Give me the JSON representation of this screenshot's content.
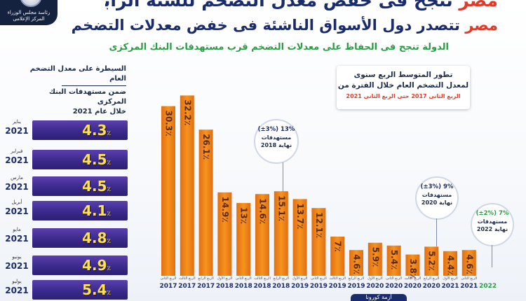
{
  "header": {
    "headline_accent": "مصر",
    "headline_rest": " تنجح فى خفض معدل التضخم للسنة الرابعة على التوالى",
    "sub_accent": "مصر",
    "sub_rest": " تتصدر دول الأسواق الناشئة فى خفض معدلات التضخم",
    "tagline": "الدولة تنجح فى الحفاظ على معدلات التضخم قرب مستهدفات البنك المركزى"
  },
  "logo": {
    "line1": "رئاسة مجلس الوزراء",
    "line2": "المركز الإعلامى"
  },
  "left_panel": {
    "caption_line1": "السيطرة على معدل التضخم العام",
    "caption_line2": "ضمن مستهدفات البنك المركزى",
    "caption_line3": "خلال عام 2021",
    "colors": {
      "bar": "#3b2a8c",
      "value": "#ffe24a"
    },
    "rows": [
      {
        "month": "يناير",
        "year": "2021",
        "value": "4.3",
        "unit": "٪"
      },
      {
        "month": "فبراير",
        "year": "2021",
        "value": "4.5",
        "unit": "٪"
      },
      {
        "month": "مارس",
        "year": "2021",
        "value": "4.5",
        "unit": "٪"
      },
      {
        "month": "أبريل",
        "year": "2021",
        "value": "4.1",
        "unit": "٪"
      },
      {
        "month": "مايو",
        "year": "2021",
        "value": "4.8",
        "unit": "٪"
      },
      {
        "month": "يونيو",
        "year": "2021",
        "value": "4.9",
        "unit": "٪"
      },
      {
        "month": "يوليو",
        "year": "2021",
        "value": "5.4",
        "unit": "٪"
      }
    ]
  },
  "chart_title": {
    "line1": "تطور المتوسط الربع سنوى",
    "line2": "لمعدل التضخم العام خلال الفترة من",
    "line3": "الربع الثانى 2017 حتى الربع الثانى 2021"
  },
  "targets": [
    {
      "pct": "13% (±3%)",
      "label1": "مستهدفات",
      "label2": "نهاية 2018"
    },
    {
      "pct": "9% (±3%)",
      "label1": "مستهدفات",
      "label2": "نهاية 2020"
    },
    {
      "pct": "7% (±2%)",
      "label1": "مستهدفات",
      "label2": "نهاية 2022"
    }
  ],
  "footer": {
    "badge": "أزمة كورونا"
  },
  "chart_data": {
    "type": "bar",
    "title": "تطور المتوسط الربع سنوى لمعدل التضخم العام خلال الفترة من الربع الثانى 2017 حتى الربع الثانى 2021",
    "unit": "٪",
    "colors": {
      "bar": "#f7931e",
      "bar_dark": "#e06f12",
      "label": "#5a2a1a"
    },
    "categories": [
      {
        "quarter": "الربع الثانى",
        "year": "2017"
      },
      {
        "quarter": "الربع الثالث",
        "year": "2017"
      },
      {
        "quarter": "الربع الرابع",
        "year": "2017"
      },
      {
        "quarter": "الربع الأول",
        "year": "2018"
      },
      {
        "quarter": "الربع الثانى",
        "year": "2018"
      },
      {
        "quarter": "الربع الثالث",
        "year": "2018"
      },
      {
        "quarter": "الربع الرابع",
        "year": "2018"
      },
      {
        "quarter": "الربع الأول",
        "year": "2019"
      },
      {
        "quarter": "الربع الثانى",
        "year": "2019"
      },
      {
        "quarter": "الربع الثالث",
        "year": "2019"
      },
      {
        "quarter": "الربع الرابع",
        "year": "2019"
      },
      {
        "quarter": "الربع الأول",
        "year": "2020"
      },
      {
        "quarter": "الربع الثانى",
        "year": "2020"
      },
      {
        "quarter": "الربع الثالث",
        "year": "2020"
      },
      {
        "quarter": "الربع الرابع",
        "year": "2020"
      },
      {
        "quarter": "الربع الأول",
        "year": "2021"
      },
      {
        "quarter": "الربع الثانى",
        "year": "2021"
      },
      {
        "quarter": "",
        "year": "2022"
      }
    ],
    "values": [
      30.3,
      32.2,
      26.1,
      14.9,
      13,
      14.6,
      15.1,
      13.7,
      12.1,
      7,
      4.6,
      5.9,
      5.4,
      3.8,
      5.2,
      4.4,
      4.6,
      null
    ],
    "labels": [
      "30.3",
      "32.2",
      "26.1",
      "14.9",
      "13",
      "14.6",
      "15.1",
      "13.7",
      "12.1",
      "7",
      "4.6",
      "5.9",
      "5.4",
      "3.8",
      "5.2",
      "4.4",
      "4.6",
      ""
    ],
    "ylim": [
      0,
      33
    ]
  }
}
